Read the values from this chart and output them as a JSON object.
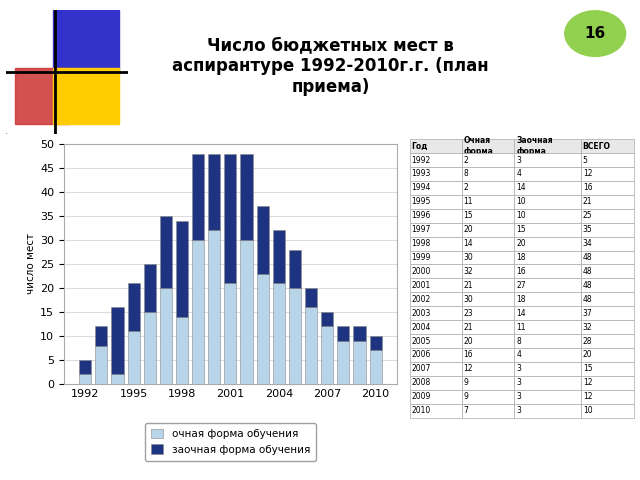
{
  "title": "Число бюджетных мест в\nаспирантуре 1992-2010г.г. (план\nприема)",
  "years": [
    1992,
    1993,
    1994,
    1995,
    1996,
    1997,
    1998,
    1999,
    2000,
    2001,
    2002,
    2003,
    2004,
    2005,
    2006,
    2007,
    2008,
    2009,
    2010
  ],
  "ochna": [
    2,
    8,
    2,
    11,
    15,
    20,
    14,
    30,
    32,
    21,
    30,
    23,
    21,
    20,
    16,
    12,
    9,
    9,
    7
  ],
  "zaochna": [
    3,
    4,
    14,
    10,
    10,
    15,
    20,
    18,
    16,
    27,
    18,
    14,
    11,
    8,
    4,
    3,
    3,
    3,
    3
  ],
  "ylabel": "число мест",
  "yticks": [
    0,
    5,
    10,
    15,
    20,
    25,
    30,
    35,
    40,
    45,
    50
  ],
  "xticks": [
    1992,
    1995,
    1998,
    2001,
    2004,
    2007,
    2010
  ],
  "bar_color_ochna": "#b8d4e8",
  "bar_color_zaochna": "#1f3480",
  "legend_ochna": "очная форма обучения",
  "legend_zaochna": "заочная форма обучения",
  "table_headers": [
    "Год",
    "Очная\nформа",
    "Заочная\nформа",
    "ВСЕГО"
  ],
  "table_years": [
    1992,
    1993,
    1994,
    1995,
    1996,
    1997,
    1998,
    1999,
    2000,
    2001,
    2002,
    2003,
    2004,
    2005,
    2006,
    2007,
    2008,
    2009,
    2010
  ],
  "table_ochna": [
    2,
    8,
    2,
    11,
    15,
    20,
    14,
    30,
    32,
    21,
    30,
    23,
    21,
    20,
    16,
    12,
    9,
    9,
    7
  ],
  "table_zaochna": [
    3,
    4,
    14,
    10,
    10,
    15,
    20,
    18,
    16,
    27,
    18,
    14,
    11,
    8,
    4,
    3,
    3,
    3,
    3
  ],
  "table_vsego": [
    5,
    12,
    16,
    21,
    25,
    35,
    34,
    48,
    48,
    48,
    48,
    37,
    32,
    28,
    20,
    15,
    12,
    12,
    10
  ],
  "slide_number": "16",
  "slide_number_color": "#92d050",
  "background_color": "#ffffff",
  "logo_blue": "#3333cc",
  "logo_red": "#cc3333",
  "logo_yellow": "#ffcc00"
}
